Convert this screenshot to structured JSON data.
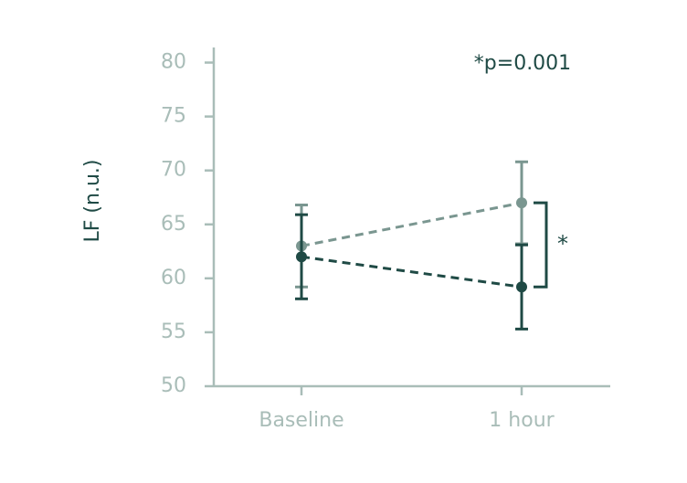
{
  "chart_data": {
    "type": "line",
    "y_label": "LF (n.u.)",
    "annotation": "*p=0.001",
    "significance_marker": "*",
    "categories": [
      "Baseline",
      "1 hour"
    ],
    "series": [
      {
        "color": "#7a9690",
        "values": [
          63,
          67
        ],
        "errors": [
          3.8,
          3.8
        ]
      },
      {
        "color": "#1f4a45",
        "values": [
          62,
          59.2
        ],
        "errors": [
          3.9,
          3.9
        ]
      }
    ],
    "ylim": [
      50,
      81.4
    ],
    "yticks": [
      50,
      55,
      60,
      65,
      70,
      75,
      80
    ]
  }
}
